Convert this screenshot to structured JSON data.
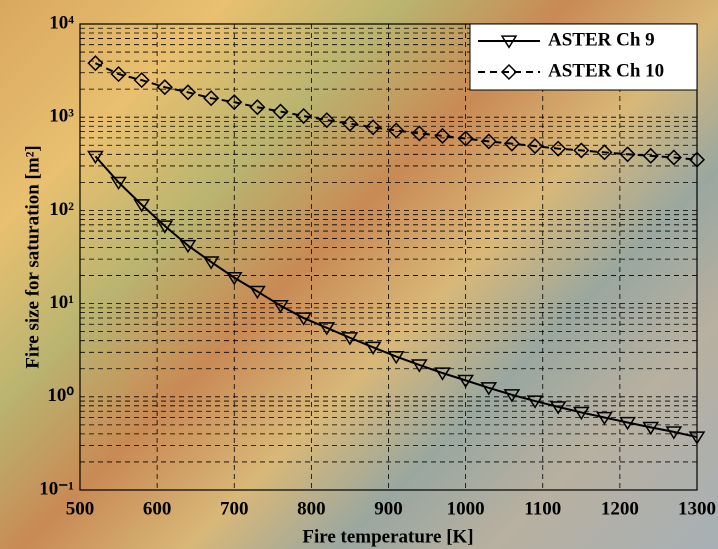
{
  "chart_data": {
    "type": "line",
    "x_label": "Fire temperature [K]",
    "y_label": "Fire size for saturation [m²]",
    "x": [
      520,
      550,
      580,
      610,
      640,
      670,
      700,
      730,
      760,
      790,
      820,
      850,
      880,
      910,
      940,
      970,
      1000,
      1030,
      1060,
      1090,
      1120,
      1150,
      1180,
      1210,
      1240,
      1270,
      1300
    ],
    "series": [
      {
        "name": "ASTER Ch 9",
        "color": "#000000",
        "linestyle": "solid",
        "marker": "triangle-down",
        "values": [
          380,
          200,
          115,
          68,
          42,
          28,
          19,
          13.5,
          9.5,
          7,
          5.5,
          4.3,
          3.4,
          2.7,
          2.2,
          1.8,
          1.5,
          1.25,
          1.05,
          0.9,
          0.78,
          0.68,
          0.6,
          0.53,
          0.47,
          0.42,
          0.37
        ]
      },
      {
        "name": "ASTER Ch 10",
        "color": "#000000",
        "linestyle": "dashed",
        "marker": "diamond",
        "values": [
          3800,
          2900,
          2500,
          2100,
          1850,
          1600,
          1450,
          1280,
          1150,
          1030,
          930,
          850,
          780,
          720,
          670,
          630,
          590,
          550,
          520,
          490,
          460,
          440,
          420,
          400,
          385,
          370,
          350
        ]
      }
    ],
    "xlim": [
      500,
      1300
    ],
    "xticks": [
      500,
      600,
      700,
      800,
      900,
      1000,
      1100,
      1200,
      1300
    ],
    "ylim": [
      0.1,
      10000
    ],
    "ylog": true,
    "yticks": [
      {
        "value": 0.1,
        "label": "10⁻¹"
      },
      {
        "value": 1,
        "label": "10⁰"
      },
      {
        "value": 10,
        "label": "10¹"
      },
      {
        "value": 100,
        "label": "10²"
      },
      {
        "value": 1000,
        "label": "10³"
      },
      {
        "value": 10000,
        "label": "10⁴"
      }
    ],
    "grid": true,
    "legend": "upper right"
  }
}
